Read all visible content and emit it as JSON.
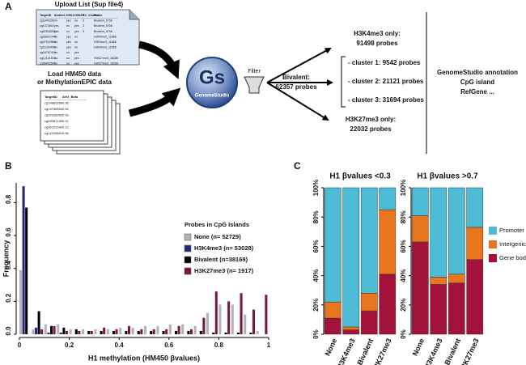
{
  "panel_labels": [
    "A",
    "B",
    "C"
  ],
  "diagram": {
    "upload": {
      "title": "Upload List (Sup file4)",
      "table": {
        "header": [
          "TargetID",
          "bivalent",
          "H3K4",
          "H3K27",
          "BV_Cluster",
          "Peaks"
        ],
        "rows": [
          [
            "cg1840296",
            "no",
            "yes",
            "no",
            "3",
            "Bivalent_5756"
          ],
          [
            "cg1073602",
            "yes",
            "no",
            "yes",
            "3",
            "Bivalent_5756"
          ],
          [
            "cg02318050",
            "yes",
            "no",
            "yes",
            "3",
            "Bivalent_5756"
          ],
          [
            "cg09037344",
            "no",
            "yes",
            "no",
            null,
            "H3K4me3_11866"
          ],
          [
            "cg07910962",
            "no",
            "yes",
            "no",
            null,
            "H3K4me3_11866"
          ],
          [
            "cg11290469",
            "no",
            "yes",
            "no",
            null,
            "H3K4me3_11866"
          ],
          [
            "cg04767410",
            "no",
            "no",
            "yes",
            null,
            null
          ],
          [
            "cg12121504",
            "no",
            "no",
            "yes",
            null,
            "H3K27me3_16289"
          ],
          [
            "cg06423507",
            "no",
            "no",
            "yes",
            null,
            "H3K27me3_16289"
          ]
        ]
      }
    },
    "load": {
      "lines": [
        "Load HM450 data",
        "or MethylationEPIC data"
      ],
      "table": {
        "header": [
          "TargetID",
          "AVG_Beta"
        ],
        "rows": [
          [
            "cg14860289",
            "0.36"
          ],
          [
            "cg14750653",
            "0.54"
          ],
          [
            "cg02318050",
            "0.93"
          ],
          [
            "cg09087130",
            "0.91"
          ],
          [
            "cg06761542",
            "0.12"
          ],
          [
            "cg11290469",
            "0.96"
          ]
        ]
      }
    },
    "logo": {
      "short": "Gs",
      "name": "GenomeStudio"
    },
    "filter": "Filter",
    "outputs": [
      {
        "label": "H3K4me3 only:",
        "count": "91498 probes"
      },
      {
        "label": "Bivalent:",
        "count": "62357 probes"
      },
      {
        "label": "H3K27me3 only:",
        "count": "22032 probes"
      }
    ],
    "clusters": [
      "- cluster 1: 9542 probes",
      "- cluster 2: 21121 probes",
      "- cluster 3: 31694 probes"
    ],
    "annotation": [
      "GenomeStudio annotation",
      "CpG island",
      "RefGene ..."
    ]
  },
  "chart_data": [
    {
      "type": "histogram",
      "x_label": "H1 methylation (HM450 βvalues)",
      "y_label": "Frequency",
      "legend_title": "Probes in CpG Islands",
      "bins": [
        0,
        0.05,
        0.1,
        0.15,
        0.2,
        0.25,
        0.3,
        0.35,
        0.4,
        0.45,
        0.5,
        0.55,
        0.6,
        0.65,
        0.7,
        0.75,
        0.8,
        0.85,
        0.9,
        0.95,
        1
      ],
      "series": [
        {
          "name": "None (n= 52729)",
          "color": "#b3b3b3",
          "values": [
            0.39,
            0.03,
            0.06,
            0.06,
            0.03,
            0.03,
            0.03,
            0.03,
            0.04,
            0.04,
            0.05,
            0.05,
            0.06,
            0.06,
            0.05,
            0.13,
            0.18,
            0.18,
            0.12,
            0.02
          ]
        },
        {
          "name": "H3K4me3 (n= 53028)",
          "color": "#262682",
          "values": [
            0.9,
            0.04,
            0.01,
            0.01,
            0,
            0,
            0,
            0,
            0,
            0,
            0,
            0,
            0,
            0,
            0,
            0,
            0,
            0,
            0,
            0
          ]
        },
        {
          "name": "Bivalent (n=38169)",
          "color": "#000000",
          "values": [
            0.77,
            0.14,
            0.05,
            0.04,
            0.03,
            0.02,
            0.02,
            0.02,
            0.02,
            0.02,
            0.02,
            0.02,
            0.02,
            0.02,
            0.02,
            0.01,
            0.01,
            0.01,
            0.01,
            0
          ]
        },
        {
          "name": "H3K27me3 (n= 1917)",
          "color": "#7b1545",
          "values": [
            0,
            0.03,
            0.05,
            0.02,
            0.02,
            0.02,
            0.04,
            0.03,
            0.05,
            0.03,
            0.03,
            0.03,
            0.05,
            0.03,
            0.1,
            0.26,
            0.2,
            0.25,
            0.15,
            0.24
          ]
        }
      ],
      "xlim": [
        0,
        1
      ],
      "xticks": [
        0,
        0.2,
        0.4,
        0.6,
        0.8,
        1
      ],
      "ylim": [
        0,
        0.92
      ],
      "yticks": [
        {
          "value": 0,
          "label": "0.0"
        },
        0.2,
        0.4,
        0.6,
        0.8
      ]
    },
    {
      "type": "stacked_bar",
      "title": "H1 βvalues <0.3",
      "categories": [
        "None",
        "H3K4me3",
        "Bivalent",
        "H3K27me3"
      ],
      "series": [
        {
          "color": "#a3123a",
          "values": [
            11,
            3,
            16,
            41
          ]
        },
        {
          "color": "#e8761f",
          "values": [
            11,
            2,
            12,
            44
          ]
        },
        {
          "color": "#4ebcd5",
          "values": [
            78,
            95,
            72,
            15
          ]
        }
      ],
      "ylim": [
        0,
        100
      ],
      "yticks": [
        {
          "value": 0,
          "label": "0%"
        },
        {
          "value": 20,
          "label": "20%"
        },
        {
          "value": 40,
          "label": "40%"
        },
        {
          "value": 60,
          "label": "60%"
        },
        {
          "value": 80,
          "label": "80%"
        },
        {
          "value": 100,
          "label": "100%"
        }
      ]
    },
    {
      "type": "stacked_bar",
      "title": "H1 βvalues >0.7",
      "categories": [
        "None",
        "H3K4me3",
        "Bivalent",
        "H3K27me3"
      ],
      "series": [
        {
          "name": "Gene body",
          "color": "#a3123a",
          "values": [
            63,
            34,
            35,
            51
          ]
        },
        {
          "name": "Intergenic",
          "color": "#e8761f",
          "values": [
            18,
            5,
            6,
            22
          ]
        },
        {
          "name": "Promoter",
          "color": "#4ebcd5",
          "values": [
            19,
            61,
            59,
            27
          ]
        }
      ],
      "ylim": [
        0,
        100
      ],
      "yticks": [
        {
          "value": 0,
          "label": "0%"
        },
        {
          "value": 20,
          "label": "20%"
        },
        {
          "value": 40,
          "label": "40%"
        },
        {
          "value": 60,
          "label": "60%"
        },
        {
          "value": 80,
          "label": "80%"
        },
        {
          "value": 100,
          "label": "100%"
        }
      ],
      "legend": "right"
    }
  ]
}
